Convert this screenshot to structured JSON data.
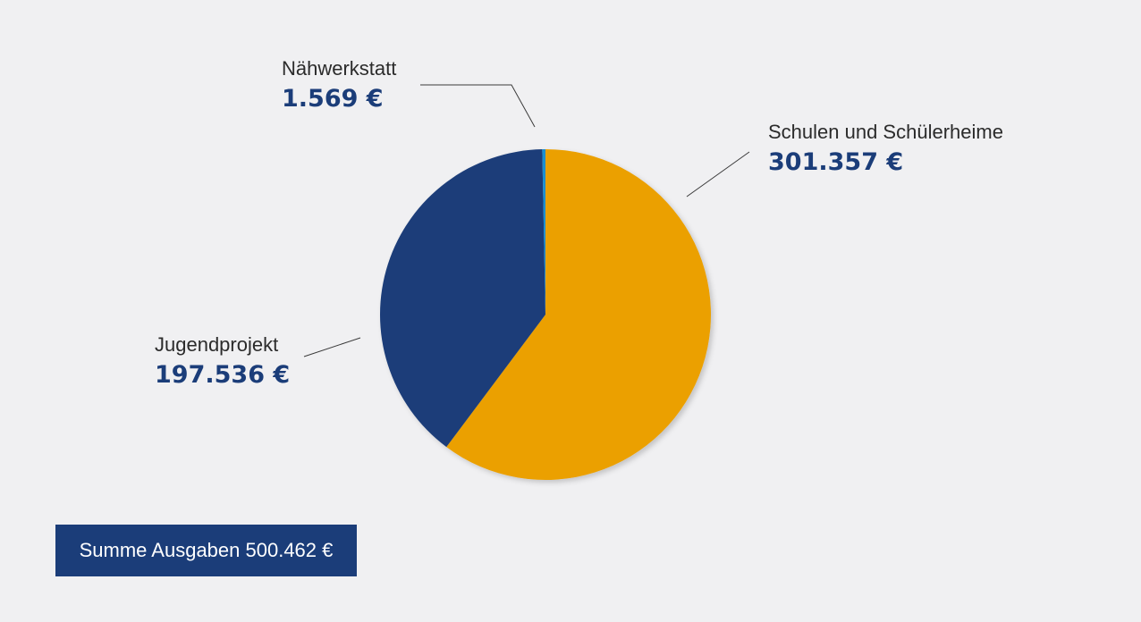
{
  "chart_data": {
    "type": "pie",
    "slices": [
      {
        "label": "Schulen und Schülerheime",
        "value": 301357,
        "value_text": "301.357 €",
        "color": "#eba000"
      },
      {
        "label": "Jugendprojekt",
        "value": 197536,
        "value_text": "197.536 €",
        "color": "#1b3d79"
      },
      {
        "label": "Nähwerkstatt",
        "value": 1569,
        "value_text": "1.569 €",
        "color": "#1f8fd0"
      }
    ],
    "total_text": "Summe Ausgaben 500.462 €"
  },
  "colors": {
    "background": "#f0f0f2",
    "accent": "#1b3d79",
    "leader_line": "#3a3a3a"
  }
}
